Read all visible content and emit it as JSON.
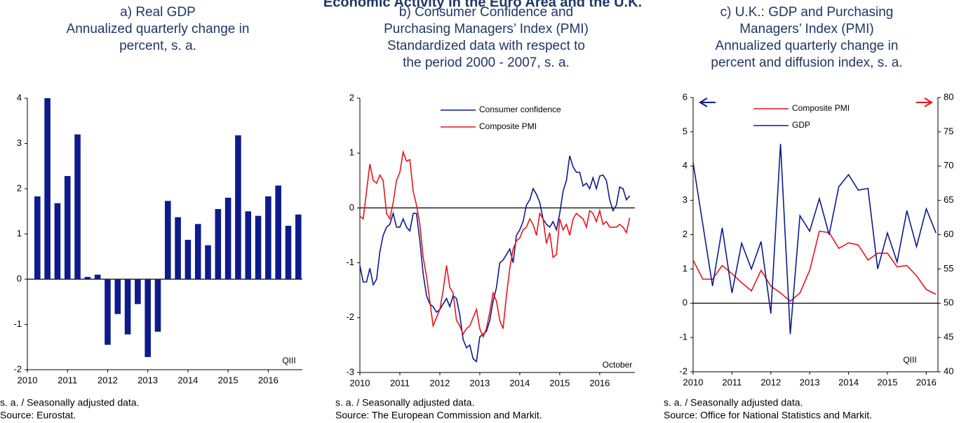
{
  "title": "Economic Activity in the Euro Area and the U.K.",
  "chart_data": [
    {
      "type": "bar",
      "title": [
        "a) Real GDP",
        "Annualized quarterly change in",
        "percent, s. a."
      ],
      "x": [
        2010.25,
        2010.5,
        2010.75,
        2011.0,
        2011.25,
        2011.5,
        2011.75,
        2012.0,
        2012.25,
        2012.5,
        2012.75,
        2013.0,
        2013.25,
        2013.5,
        2013.75,
        2014.0,
        2014.25,
        2014.5,
        2014.75,
        2015.0,
        2015.25,
        2015.5,
        2015.75,
        2016.0,
        2016.25,
        2016.5,
        2016.75
      ],
      "values": [
        1.83,
        4.0,
        1.68,
        2.28,
        3.2,
        0.05,
        0.1,
        -1.45,
        -0.77,
        -1.22,
        -0.55,
        -1.72,
        -1.16,
        1.73,
        1.37,
        0.87,
        1.22,
        0.75,
        1.55,
        1.8,
        3.18,
        1.5,
        1.4,
        1.83,
        2.07,
        1.18,
        1.43
      ],
      "color": "#0d1b8c",
      "xlim": [
        2010,
        2016.85
      ],
      "xticks": [
        2010,
        2011,
        2012,
        2013,
        2014,
        2015,
        2016
      ],
      "ylim": [
        -2,
        4
      ],
      "yticks": [
        -2,
        -1,
        0,
        1,
        2,
        3,
        4
      ],
      "annotation": "QIII",
      "footnotes": [
        "s. a. / Seasonally adjusted data.",
        "Source: Eurostat."
      ]
    },
    {
      "type": "line",
      "title": [
        "b) Consumer Confidence and",
        "Purchasing Managers’ Index (PMI)",
        "Standardized data with respect to",
        "the period 2000 - 2007, s. a."
      ],
      "x": [
        2010.0,
        2010.083,
        2010.167,
        2010.25,
        2010.333,
        2010.417,
        2010.5,
        2010.583,
        2010.667,
        2010.75,
        2010.833,
        2010.917,
        2011.0,
        2011.083,
        2011.167,
        2011.25,
        2011.333,
        2011.417,
        2011.5,
        2011.583,
        2011.667,
        2011.75,
        2011.833,
        2011.917,
        2012.0,
        2012.083,
        2012.167,
        2012.25,
        2012.333,
        2012.417,
        2012.5,
        2012.583,
        2012.667,
        2012.75,
        2012.833,
        2012.917,
        2013.0,
        2013.083,
        2013.167,
        2013.25,
        2013.333,
        2013.417,
        2013.5,
        2013.583,
        2013.667,
        2013.75,
        2013.833,
        2013.917,
        2014.0,
        2014.083,
        2014.167,
        2014.25,
        2014.333,
        2014.417,
        2014.5,
        2014.583,
        2014.667,
        2014.75,
        2014.833,
        2014.917,
        2015.0,
        2015.083,
        2015.167,
        2015.25,
        2015.333,
        2015.417,
        2015.5,
        2015.583,
        2015.667,
        2015.75,
        2015.833,
        2015.917,
        2016.0,
        2016.083,
        2016.167,
        2016.25,
        2016.333,
        2016.417,
        2016.5,
        2016.583,
        2016.667,
        2016.75
      ],
      "series": [
        {
          "name": "Consumer confidence",
          "color": "#0d1b8c",
          "values": [
            -1.05,
            -1.35,
            -1.35,
            -1.1,
            -1.4,
            -1.3,
            -0.8,
            -0.5,
            -0.35,
            -0.3,
            -0.1,
            -0.35,
            -0.35,
            -0.2,
            -0.35,
            -0.42,
            -0.1,
            -0.1,
            -0.6,
            -1.2,
            -1.6,
            -1.75,
            -1.8,
            -1.9,
            -1.85,
            -1.75,
            -1.65,
            -1.8,
            -1.6,
            -1.65,
            -1.95,
            -2.4,
            -2.55,
            -2.5,
            -2.75,
            -2.8,
            -2.35,
            -2.3,
            -2.25,
            -2.05,
            -1.7,
            -1.45,
            -1.0,
            -0.95,
            -0.85,
            -0.75,
            -1.0,
            -0.5,
            -0.4,
            -0.25,
            0.05,
            0.15,
            0.35,
            0.25,
            0.1,
            -0.2,
            -0.3,
            -0.35,
            -0.25,
            -0.4,
            -0.1,
            0.3,
            0.5,
            0.95,
            0.75,
            0.65,
            0.65,
            0.4,
            0.45,
            0.35,
            0.55,
            0.35,
            0.58,
            0.6,
            0.5,
            0.15,
            -0.05,
            0.05,
            0.38,
            0.35,
            0.15,
            0.22
          ]
        },
        {
          "name": "Composite PMI",
          "color": "#e8141b",
          "values": [
            -0.15,
            -0.2,
            0.3,
            0.8,
            0.5,
            0.45,
            0.6,
            0.5,
            -0.1,
            -0.2,
            0.1,
            0.5,
            0.65,
            1.02,
            0.85,
            0.88,
            0.3,
            0.05,
            -0.3,
            -0.9,
            -1.25,
            -1.7,
            -2.15,
            -2.0,
            -1.85,
            -1.5,
            -1.05,
            -1.45,
            -1.55,
            -2.05,
            -2.15,
            -2.3,
            -2.2,
            -2.15,
            -2.0,
            -1.85,
            -2.2,
            -2.35,
            -2.2,
            -1.9,
            -1.55,
            -1.7,
            -2.05,
            -2.2,
            -1.6,
            -1.1,
            -0.75,
            -0.6,
            -0.55,
            -0.4,
            -0.35,
            -0.2,
            -0.3,
            -0.5,
            -0.1,
            -0.2,
            -0.65,
            -0.45,
            -0.9,
            -0.85,
            -0.2,
            -0.4,
            -0.3,
            -0.5,
            -0.2,
            -0.1,
            -0.15,
            -0.2,
            -0.35,
            -0.05,
            -0.1,
            -0.25,
            -0.05,
            -0.3,
            -0.25,
            -0.35,
            -0.35,
            -0.35,
            -0.3,
            -0.35,
            -0.45,
            -0.18
          ]
        }
      ],
      "xlim": [
        2010,
        2016.88
      ],
      "xticks": [
        2010,
        2011,
        2012,
        2013,
        2014,
        2015,
        2016
      ],
      "ylim": [
        -3,
        2
      ],
      "yticks": [
        -3,
        -2,
        -1,
        0,
        1,
        2
      ],
      "annotation": "October",
      "footnotes": [
        "s. a. / Seasonally adjusted data.",
        "Source: The European Commission and Markit."
      ]
    },
    {
      "type": "line",
      "title": [
        "c) U.K.: GDP and Purchasing",
        "Managers’ Index (PMI)",
        "Annualized quarterly change in",
        "percent and diffusion index, s. a."
      ],
      "x": [
        2010.0,
        2010.25,
        2010.5,
        2010.75,
        2011.0,
        2011.25,
        2011.5,
        2011.75,
        2012.0,
        2012.25,
        2012.5,
        2012.75,
        2013.0,
        2013.25,
        2013.5,
        2013.75,
        2014.0,
        2014.25,
        2014.5,
        2014.75,
        2015.0,
        2015.25,
        2015.5,
        2015.75,
        2016.0,
        2016.25
      ],
      "series": [
        {
          "name": "Composite PMI",
          "color": "#e8141b",
          "axis": "y2",
          "values": [
            56.3,
            53.5,
            53.5,
            55.5,
            54.3,
            53.0,
            51.8,
            54.8,
            52.5,
            51.5,
            50.3,
            51.5,
            54.8,
            60.5,
            60.3,
            58.0,
            58.8,
            58.5,
            56.3,
            57.3,
            57.3,
            55.3,
            55.5,
            54.0,
            52.0,
            51.3
          ]
        },
        {
          "name": "GDP",
          "color": "#0d1b8c",
          "values": [
            4.1,
            2.3,
            0.5,
            2.2,
            0.3,
            1.75,
            1.0,
            1.8,
            -0.3,
            4.65,
            -0.9,
            2.55,
            2.1,
            3.05,
            2.0,
            3.4,
            3.75,
            3.3,
            3.35,
            1.0,
            2.05,
            1.2,
            2.7,
            1.65,
            2.75,
            2.05
          ]
        }
      ],
      "xlim": [
        2010,
        2016.3
      ],
      "xticks": [
        2010,
        2011,
        2012,
        2013,
        2014,
        2015,
        2016
      ],
      "ylim": [
        -2,
        6
      ],
      "yticks": [
        -2,
        -1,
        0,
        1,
        2,
        3,
        4,
        5,
        6
      ],
      "y2lim": [
        40,
        80
      ],
      "y2ticks": [
        40,
        45,
        50,
        55,
        60,
        65,
        70,
        75,
        80
      ],
      "annotation": "QIII",
      "footnotes": [
        "s. a. / Seasonally adjusted data.",
        "Source: Office for National Statistics and Markit."
      ]
    }
  ]
}
